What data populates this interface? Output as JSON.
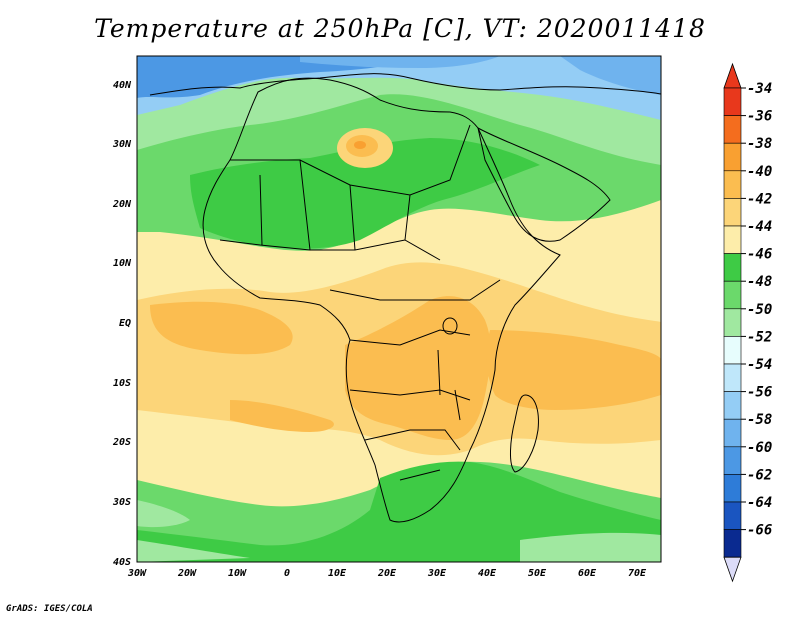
{
  "title": "Temperature at 250hPa [C], VT: 2020011418",
  "credit": "GrADS: IGES/COLA",
  "map": {
    "lon_range": [
      -30,
      75
    ],
    "lat_range": [
      -40,
      45
    ],
    "lon_ticks": [
      "30W",
      "20W",
      "10W",
      "0",
      "10E",
      "20E",
      "30E",
      "40E",
      "50E",
      "60E",
      "70E"
    ],
    "lat_ticks": [
      "40N",
      "30N",
      "20N",
      "10N",
      "EQ",
      "10S",
      "20S",
      "30S",
      "40S"
    ]
  },
  "colorbar": {
    "labels": [
      "-34",
      "-36",
      "-38",
      "-40",
      "-42",
      "-44",
      "-46",
      "-48",
      "-50",
      "-52",
      "-54",
      "-56",
      "-58",
      "-60",
      "-62",
      "-64",
      "-66"
    ],
    "colors": [
      "#e8381c",
      "#f46d1e",
      "#f9a031",
      "#fbbd50",
      "#fcd579",
      "#fdedaa",
      "#3ecb45",
      "#6bd96b",
      "#a0e8a0",
      "#e7fdfd",
      "#bfe7fa",
      "#94cdf5",
      "#6fb3ee",
      "#4c98e4",
      "#2e7cd8",
      "#1a55c0",
      "#0a2a90"
    ],
    "top_arrow_color": "#e8381c",
    "bottom_arrow_color": "#dcdcf8"
  }
}
